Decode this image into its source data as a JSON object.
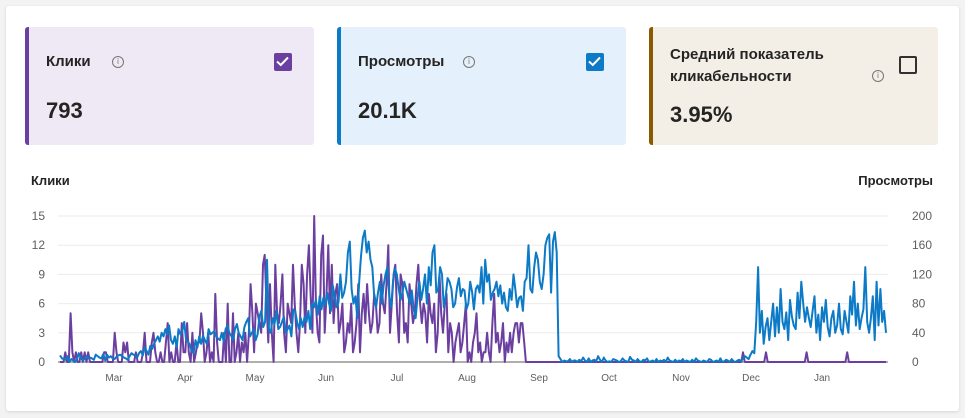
{
  "cards": [
    {
      "label": "Клики",
      "value": "793",
      "checked": true,
      "accent": "#6b3fa0"
    },
    {
      "label": "Просмотры",
      "value": "20.1K",
      "checked": true,
      "accent": "#0c7ac6"
    },
    {
      "label_line1": "Средний показатель",
      "label_line2": "кликабельности",
      "value": "3.95%",
      "checked": false,
      "accent": "#8a5a00"
    }
  ],
  "info_glyph": "i",
  "chart_data": {
    "type": "line",
    "y_left_label": "Клики",
    "y_right_label": "Просмотры",
    "y_left_ticks": [
      "15",
      "12",
      "9",
      "6",
      "3",
      "0"
    ],
    "y_right_ticks": [
      "200",
      "160",
      "120",
      "80",
      "40",
      "0"
    ],
    "ylim_left": [
      0,
      15
    ],
    "ylim_right": [
      0,
      200
    ],
    "x_ticks": [
      "Mar",
      "Apr",
      "May",
      "Jun",
      "Jul",
      "Aug",
      "Sep",
      "Oct",
      "Nov",
      "Dec",
      "Jan"
    ],
    "grid": true,
    "series": [
      {
        "name": "Клики",
        "axis": "left",
        "color": "#6b3fa0",
        "values": [
          0,
          0,
          0,
          1,
          0,
          0,
          5,
          1,
          0,
          1,
          0,
          0,
          1,
          0,
          1,
          0,
          1,
          0,
          0,
          0,
          0,
          0,
          0,
          0,
          0,
          1,
          1,
          0,
          0,
          0,
          0,
          3,
          1,
          0,
          0,
          0,
          2,
          1,
          2,
          0,
          0,
          0,
          0,
          1,
          0,
          0,
          0,
          1,
          3,
          0,
          0,
          0,
          2,
          3,
          1,
          0,
          0,
          1,
          0,
          0,
          2,
          4,
          0,
          1,
          0,
          0,
          2,
          0,
          0,
          4,
          1,
          1,
          4,
          1,
          0,
          3,
          0,
          1,
          2,
          2,
          5,
          3,
          0,
          1,
          3,
          0,
          1,
          0,
          7,
          2,
          0,
          0,
          0,
          3,
          0,
          6,
          0,
          0,
          5,
          0,
          1,
          3,
          0,
          2,
          1,
          3,
          0,
          3,
          8,
          5,
          1,
          6,
          5,
          4,
          3,
          10,
          11,
          6,
          2,
          8,
          3,
          0,
          10,
          5,
          4,
          6,
          9,
          3,
          1,
          6,
          5,
          4,
          10,
          6,
          3,
          1,
          4,
          10,
          8,
          3,
          9,
          12,
          7,
          3,
          15,
          6,
          3,
          2,
          11,
          13,
          3,
          7,
          12,
          5,
          10,
          4,
          7,
          8,
          3,
          4,
          6,
          1,
          2,
          4,
          3,
          6,
          1,
          2,
          4,
          8,
          1,
          5,
          7,
          4,
          8,
          5,
          3,
          4,
          7,
          6,
          3,
          4,
          9,
          6,
          5,
          8,
          12,
          3,
          6,
          9,
          10,
          5,
          2,
          9,
          8,
          3,
          4,
          2,
          8,
          6,
          4,
          5,
          8,
          10,
          6,
          4,
          6,
          5,
          2,
          7,
          5,
          4,
          6,
          1,
          3,
          9,
          5,
          3,
          6,
          7,
          1,
          4,
          3,
          0,
          2,
          3,
          4,
          1,
          2,
          4,
          6,
          0,
          1,
          0,
          2,
          3,
          5,
          1,
          2,
          0,
          1,
          1,
          3,
          1,
          0,
          4,
          7,
          2,
          3,
          1,
          2,
          4,
          0,
          2,
          1,
          3,
          1,
          3,
          4,
          4,
          2,
          4,
          4,
          2,
          0,
          0,
          0,
          0,
          0,
          0,
          0,
          0,
          0,
          0,
          0,
          0,
          0,
          0,
          0,
          0,
          0,
          0,
          0,
          0,
          0,
          0,
          0,
          0,
          0,
          0,
          0,
          0,
          0,
          0,
          0,
          0,
          0,
          0,
          0,
          0,
          0,
          0,
          0,
          0,
          0,
          0,
          0,
          0,
          0,
          0,
          0,
          0,
          0,
          0,
          0,
          0,
          0,
          0,
          0,
          0,
          0,
          0,
          0,
          0,
          0,
          0,
          0,
          0,
          0,
          0,
          0,
          0,
          0,
          0,
          0,
          0,
          0,
          0,
          0,
          0,
          0,
          0,
          0,
          0,
          0,
          0,
          0,
          0,
          0,
          0,
          0,
          0,
          0,
          0,
          0,
          0,
          0,
          0,
          0,
          0,
          0,
          0,
          0,
          0,
          0,
          0,
          0,
          0,
          0,
          0,
          0,
          0,
          0,
          0,
          0,
          0,
          0,
          0,
          0,
          0,
          0,
          0,
          0,
          0,
          0,
          0,
          0,
          1,
          0,
          0,
          0,
          0,
          0,
          0,
          0,
          0,
          0,
          0,
          0,
          0,
          1,
          0,
          0,
          0,
          0,
          0,
          0,
          0,
          0,
          0,
          0,
          0,
          0,
          0,
          0,
          0,
          0,
          0,
          0,
          0,
          0,
          0,
          0,
          1,
          0,
          0,
          0,
          0,
          0,
          0,
          0,
          0,
          0,
          0,
          0,
          0,
          0,
          0,
          0,
          0,
          0,
          0,
          0,
          0,
          0,
          0,
          1,
          0,
          0,
          0,
          0,
          0,
          0,
          0,
          0,
          0,
          0,
          0,
          0,
          0,
          0,
          0,
          0,
          0,
          0,
          0,
          0,
          0,
          0
        ]
      },
      {
        "name": "Просмотры",
        "axis": "right",
        "color": "#0c7ac6",
        "values": [
          9,
          5,
          4,
          3,
          8,
          0,
          4,
          2,
          0,
          3,
          12,
          6,
          2,
          4,
          8,
          5,
          6,
          5,
          3,
          10,
          8,
          6,
          5,
          11,
          2,
          10,
          6,
          8,
          5,
          4,
          7,
          9,
          10,
          8,
          6,
          5,
          3,
          8,
          12,
          10,
          9,
          6,
          12,
          15,
          9,
          20,
          15,
          10,
          22,
          18,
          25,
          30,
          35,
          28,
          40,
          35,
          45,
          38,
          50,
          30,
          25,
          35,
          20,
          45,
          38,
          42,
          55,
          30,
          28,
          24,
          15,
          12,
          30,
          20,
          35,
          25,
          36,
          30,
          25,
          45,
          38,
          40,
          42,
          35,
          32,
          30,
          40,
          28,
          45,
          50,
          40,
          36,
          30,
          45,
          52,
          40,
          35,
          30,
          48,
          55,
          60,
          35,
          40,
          45,
          30,
          38,
          62,
          70,
          48,
          55,
          140,
          45,
          40,
          60,
          52,
          70,
          45,
          48,
          55,
          62,
          40,
          45,
          50,
          35,
          72,
          70,
          55,
          45,
          60,
          48,
          62,
          55,
          70,
          45,
          80,
          75,
          85,
          65,
          90,
          72,
          88,
          78,
          95,
          80,
          70,
          105,
          90,
          75,
          82,
          120,
          88,
          95,
          110,
          150,
          165,
          100,
          80,
          90,
          60,
          110,
          145,
          170,
          180,
          150,
          165,
          140,
          130,
          90,
          75,
          95,
          110,
          80,
          105,
          120,
          130,
          90,
          75,
          110,
          128,
          120,
          100,
          85,
          95,
          110,
          100,
          90,
          80,
          98,
          72,
          60,
          88,
          110,
          85,
          100,
          120,
          80,
          130,
          105,
          150,
          160,
          95,
          100,
          130,
          120,
          75,
          90,
          115,
          110,
          100,
          75,
          80,
          102,
          115,
          90,
          100,
          98,
          72,
          80,
          110,
          96,
          72,
          100,
          105,
          95,
          130,
          80,
          140,
          110,
          120,
          85,
          95,
          100,
          110,
          90,
          105,
          80,
          95,
          75,
          70,
          100,
          85,
          120,
          100,
          75,
          88,
          90,
          70,
          110,
          115,
          160,
          100,
          95,
          130,
          150,
          140,
          110,
          100,
          120,
          160,
          170,
          175,
          95,
          165,
          178,
          150,
          8,
          4,
          0,
          2,
          1,
          1,
          4,
          0,
          2,
          2,
          0,
          3,
          1,
          6,
          2,
          0,
          5,
          0,
          2,
          3,
          1,
          8,
          3,
          0,
          6,
          2,
          0,
          1,
          0,
          4,
          3,
          2,
          0,
          1,
          5,
          2,
          1,
          0,
          7,
          3,
          2,
          0,
          4,
          1,
          0,
          3,
          2,
          5,
          0,
          1,
          2,
          0,
          4,
          0,
          2,
          1,
          3,
          0,
          6,
          2,
          1,
          0,
          3,
          0,
          2,
          1,
          4,
          0,
          2,
          1,
          0,
          3,
          0,
          5,
          2,
          1,
          0,
          2,
          1,
          0,
          4,
          3,
          0,
          1,
          2,
          0,
          5,
          0,
          1,
          3,
          2,
          0,
          4,
          1,
          0,
          2,
          3,
          1,
          5,
          8,
          6,
          4,
          10,
          15,
          12,
          55,
          130,
          40,
          70,
          25,
          48,
          60,
          30,
          55,
          80,
          35,
          75,
          40,
          100,
          55,
          45,
          68,
          30,
          85,
          62,
          50,
          45,
          95,
          60,
          110,
          80,
          55,
          75,
          60,
          48,
          70,
          90,
          40,
          65,
          30,
          75,
          55,
          85,
          48,
          35,
          60,
          70,
          40,
          50,
          80,
          45,
          38,
          70,
          55,
          40,
          90,
          65,
          110,
          50,
          80,
          45,
          60,
          72,
          130,
          55,
          40,
          60,
          90,
          30,
          110,
          50,
          100,
          55,
          70,
          40
        ]
      }
    ]
  }
}
